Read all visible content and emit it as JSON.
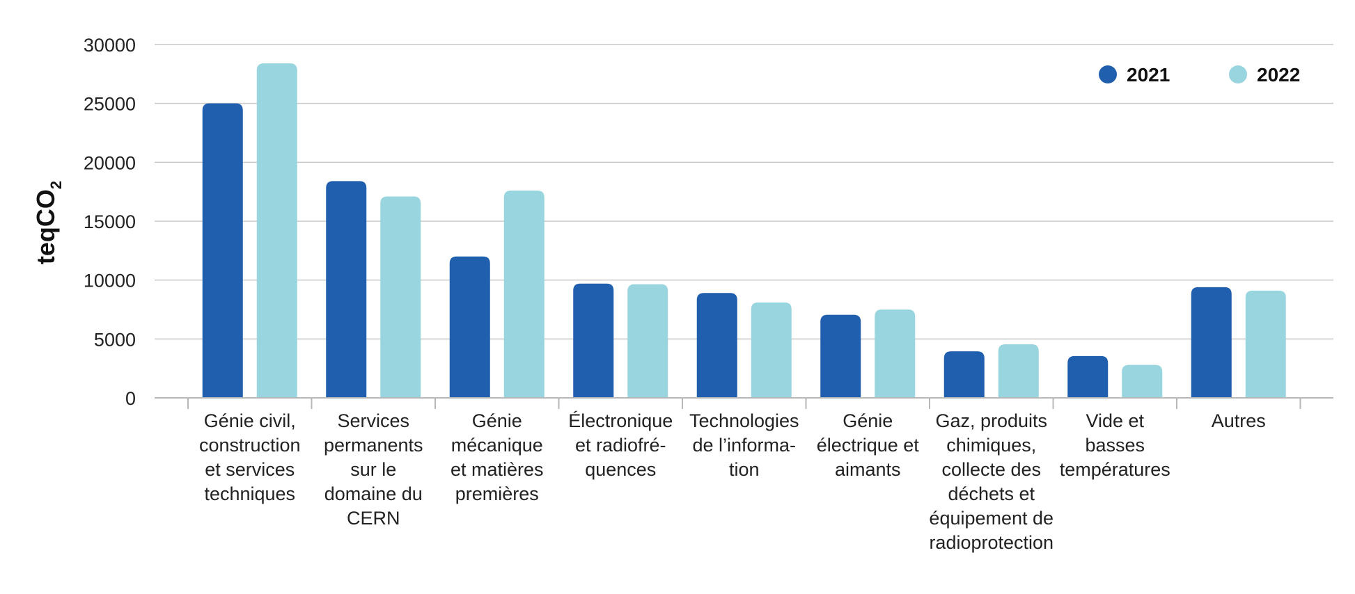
{
  "chart_data": {
    "type": "bar",
    "ylabel": "teqCO",
    "ylabel_subscript": "2",
    "ylim": [
      0,
      30000
    ],
    "yticks": [
      "0",
      "5000",
      "10000",
      "15000",
      "20000",
      "25000",
      "30000"
    ],
    "grid": true,
    "legend_position": "top-right",
    "categories": [
      [
        "Génie civil,",
        "construction",
        "et services",
        "techniques"
      ],
      [
        "Services",
        "permanents",
        "sur le",
        "domaine du",
        "CERN"
      ],
      [
        "Génie",
        "mécanique",
        "et matières",
        "premières"
      ],
      [
        "Électronique",
        "et radiofré-",
        "quences"
      ],
      [
        "Technologies",
        "de l’informa-",
        "tion"
      ],
      [
        "Génie",
        "électrique et",
        "aimants"
      ],
      [
        "Gaz, produits",
        "chimiques,",
        "collecte des",
        "déchets et",
        "équipement de",
        "radioprotection"
      ],
      [
        "Vide et",
        "basses",
        "températures"
      ],
      [
        "Autres"
      ]
    ],
    "series": [
      {
        "name": "2021",
        "color": "#1f5fae",
        "values": [
          25000,
          18400,
          12000,
          9700,
          8900,
          7050,
          3950,
          3550,
          9400
        ]
      },
      {
        "name": "2022",
        "color": "#98d5df",
        "values": [
          28400,
          17100,
          17600,
          9650,
          8100,
          7500,
          4550,
          2800,
          9100
        ]
      }
    ]
  }
}
